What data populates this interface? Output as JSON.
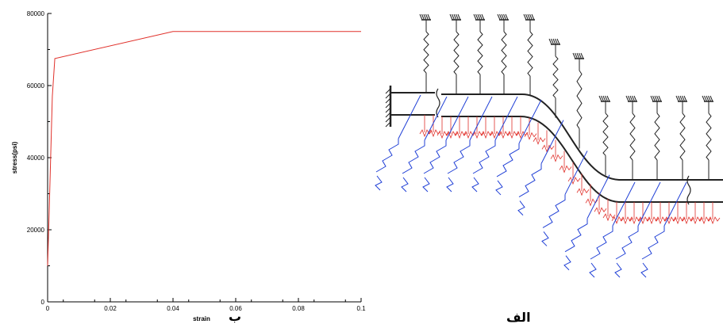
{
  "chart_data": {
    "type": "line",
    "xlabel": "strain",
    "ylabel": "stress(psi)",
    "xlim": [
      0,
      0.1
    ],
    "ylim": [
      0,
      80000
    ],
    "x_ticks": [
      "0",
      "0.02",
      "0.04",
      "0.06",
      "0.08",
      "0.1"
    ],
    "y_ticks": [
      "0",
      "20000",
      "40000",
      "60000",
      "80000"
    ],
    "series": [
      {
        "color": "#e0302a",
        "x": [
          0,
          0.0005,
          0.0015,
          0.0023,
          0.04,
          0.1
        ],
        "y": [
          10000,
          25000,
          57000,
          67500,
          75000,
          75000
        ]
      }
    ]
  },
  "captions": {
    "left": "ب",
    "right": "الف"
  },
  "colors": {
    "pipe": "#222222",
    "soil_spring_vertical": "#222222",
    "soil_spring_axial": "#1f3fd6",
    "soil_spring_lateral": "#e0302a"
  }
}
